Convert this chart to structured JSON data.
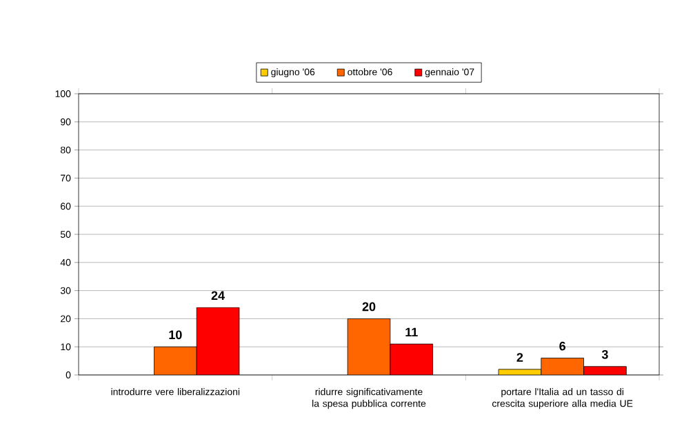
{
  "chart_data": {
    "type": "bar",
    "categories": [
      "introdurre vere liberalizzazioni",
      "ridurre significativamente la spesa pubblica corrente",
      "portare l'Italia ad un tasso di crescita superiore alla media UE"
    ],
    "series": [
      {
        "name": "giugno '06",
        "color": "#ffcc00",
        "values": [
          null,
          null,
          2
        ]
      },
      {
        "name": "ottobre '06",
        "color": "#ff6600",
        "values": [
          10,
          20,
          6
        ]
      },
      {
        "name": "gennaio '07",
        "color": "#ff0000",
        "values": [
          24,
          11,
          3
        ]
      }
    ],
    "ylim": [
      0,
      100
    ],
    "yticks": [
      0,
      10,
      20,
      30,
      40,
      50,
      60,
      70,
      80,
      90,
      100
    ],
    "grid": "y",
    "legend": "top",
    "data_labels": true
  }
}
